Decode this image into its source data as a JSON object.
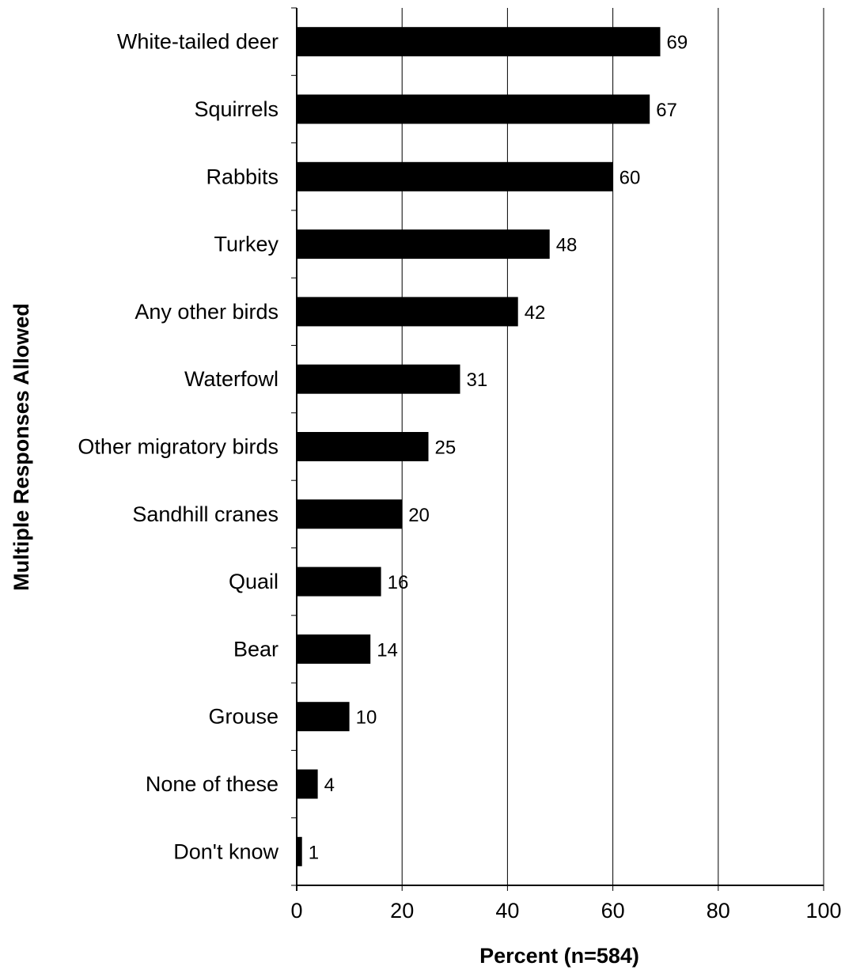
{
  "chart_data": {
    "type": "bar",
    "orientation": "horizontal",
    "categories": [
      "White-tailed deer",
      "Squirrels",
      "Rabbits",
      "Turkey",
      "Any other birds",
      "Waterfowl",
      "Other migratory birds",
      "Sandhill cranes",
      "Quail",
      "Bear",
      "Grouse",
      "None of these",
      "Don't know"
    ],
    "values": [
      69,
      67,
      60,
      48,
      42,
      31,
      25,
      20,
      16,
      14,
      10,
      4,
      1
    ],
    "data_labels": [
      "69",
      "67",
      "60",
      "48",
      "42",
      "31",
      "25",
      "20",
      "16",
      "14",
      "10",
      "4",
      "1"
    ],
    "xlim": [
      0,
      100
    ],
    "xticks": [
      0,
      20,
      40,
      60,
      80,
      100
    ],
    "xtick_labels": [
      "0",
      "20",
      "40",
      "60",
      "80",
      "100"
    ],
    "xlabel": "Percent (n=584)",
    "ylabel": "Multiple Responses Allowed",
    "title": "",
    "grid": "vertical",
    "bar_color": "#000000",
    "grid_color": "#000000"
  }
}
